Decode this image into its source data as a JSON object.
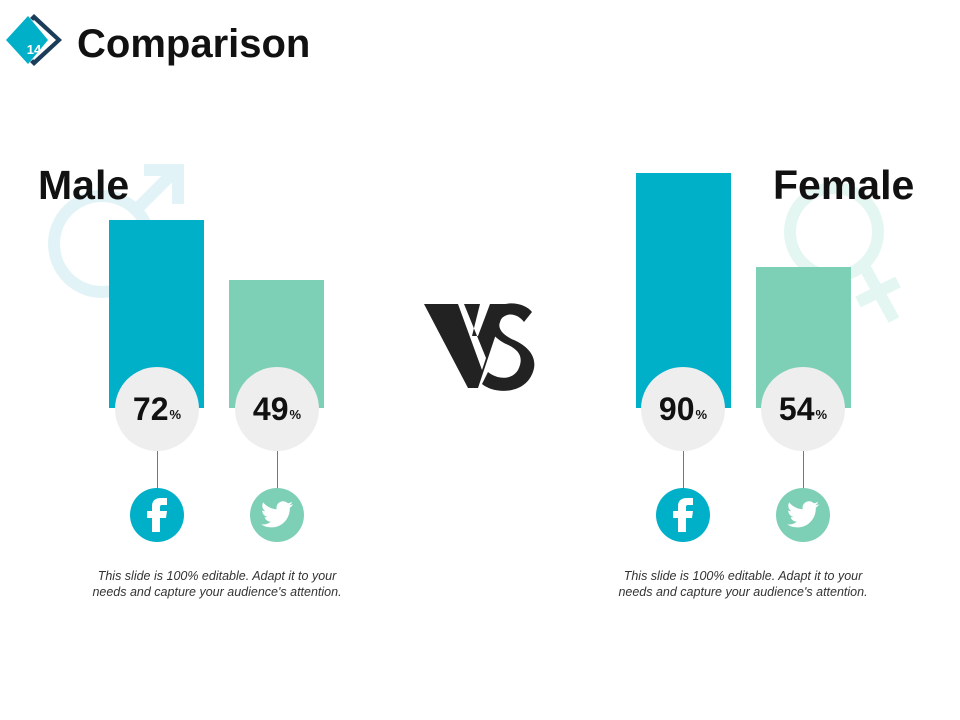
{
  "slide": {
    "number": "14",
    "title": "Comparison",
    "vs_text": "VS"
  },
  "colors": {
    "facebook": "#00AFC8",
    "twitter": "#7DCFB6",
    "circle": "#EEEEEE",
    "male_icon": "#E2F3F8",
    "female_icon": "#E4F6F1",
    "badge_dark": "#1B3D59"
  },
  "icons": {
    "male_symbol": "male-symbol-icon",
    "female_symbol": "female-symbol-icon",
    "facebook": "facebook-icon",
    "twitter": "twitter-icon",
    "vs": "vs-glyph"
  },
  "groups": [
    {
      "label": "Male",
      "caption": "This slide is 100% editable. Adapt it to your needs and capture your audience's attention."
    },
    {
      "label": "Female",
      "caption": "This slide is 100% editable. Adapt it to your needs and capture your audience's attention."
    }
  ],
  "chart_data": {
    "type": "bar",
    "unit": "%",
    "categories": [
      "Male",
      "Female"
    ],
    "series": [
      {
        "icon": "facebook-icon",
        "values": [
          72,
          90
        ]
      },
      {
        "icon": "twitter-icon",
        "values": [
          49,
          54
        ]
      }
    ],
    "value_labels": [
      [
        "72",
        "49"
      ],
      [
        "90",
        "54"
      ]
    ]
  }
}
